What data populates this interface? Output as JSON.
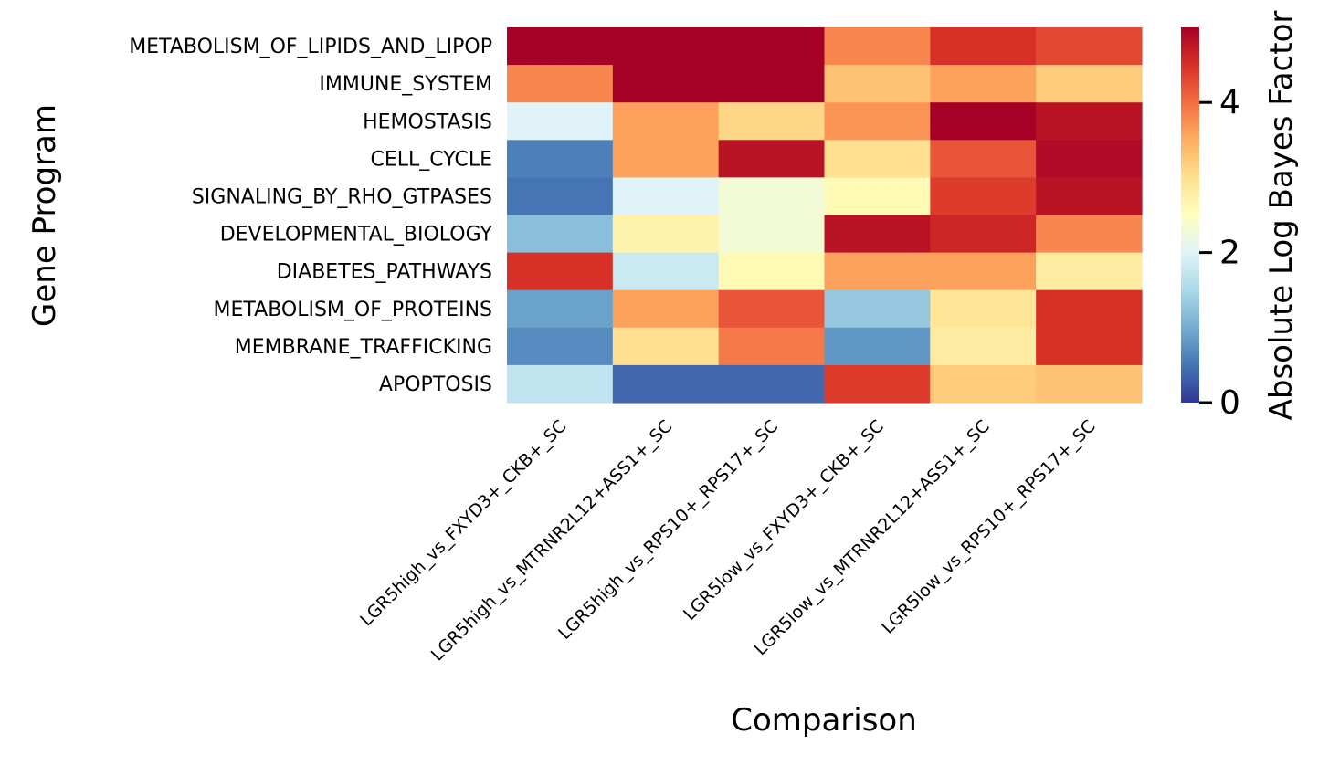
{
  "chart_data": {
    "type": "heatmap",
    "title": "",
    "xlabel": "Comparison",
    "ylabel": "Gene Program",
    "colorbar_label": "Absolute Log Bayes Factor",
    "colorbar_ticks": [
      "0",
      "2",
      "4"
    ],
    "colorbar_tick_values": [
      0,
      2,
      4
    ],
    "vmin": 0,
    "vmax": 5,
    "colormap": "RdYlBu_r",
    "colormap_stops": [
      "#313695",
      "#4575b4",
      "#74add1",
      "#abd9e9",
      "#e0f3f8",
      "#ffffbf",
      "#fee090",
      "#fdae61",
      "#f46d43",
      "#d73027",
      "#a50026"
    ],
    "columns": [
      "LGR5high_vs_FXYD3+_CKB+_SC",
      "LGR5high_vs_MTRNR2L12+ASS1+_SC",
      "LGR5high_vs_RPS10+_RPS17+_SC",
      "LGR5low_vs_FXYD3+_CKB+_SC",
      "LGR5low_vs_MTRNR2L12+ASS1+_SC",
      "LGR5low_vs_RPS10+_RPS17+_SC"
    ],
    "rows": [
      "METABOLISM_OF_LIPIDS_AND_LIPOP",
      "IMMUNE_SYSTEM",
      "HEMOSTASIS",
      "CELL_CYCLE",
      "SIGNALING_BY_RHO_GTPASES",
      "DEVELOPMENTAL_BIOLOGY",
      "DIABETES_PATHWAYS",
      "METABOLISM_OF_PROTEINS",
      "MEMBRANE_TRAFFICKING",
      "APOPTOSIS"
    ],
    "values": [
      [
        5.0,
        5.0,
        5.0,
        3.8,
        4.5,
        4.3
      ],
      [
        3.8,
        5.0,
        5.0,
        3.3,
        3.6,
        3.2
      ],
      [
        2.0,
        3.6,
        3.1,
        3.7,
        5.0,
        4.8
      ],
      [
        0.6,
        3.6,
        4.8,
        3.0,
        4.2,
        4.9
      ],
      [
        0.5,
        2.0,
        2.3,
        2.6,
        4.4,
        4.8
      ],
      [
        1.2,
        2.7,
        2.3,
        4.8,
        4.6,
        3.8
      ],
      [
        4.5,
        1.8,
        2.6,
        3.6,
        3.6,
        2.8
      ],
      [
        0.9,
        3.6,
        4.2,
        1.3,
        2.9,
        4.5
      ],
      [
        0.7,
        3.0,
        3.9,
        0.8,
        2.8,
        4.5
      ],
      [
        1.7,
        0.4,
        0.4,
        4.4,
        3.2,
        3.3
      ]
    ]
  }
}
